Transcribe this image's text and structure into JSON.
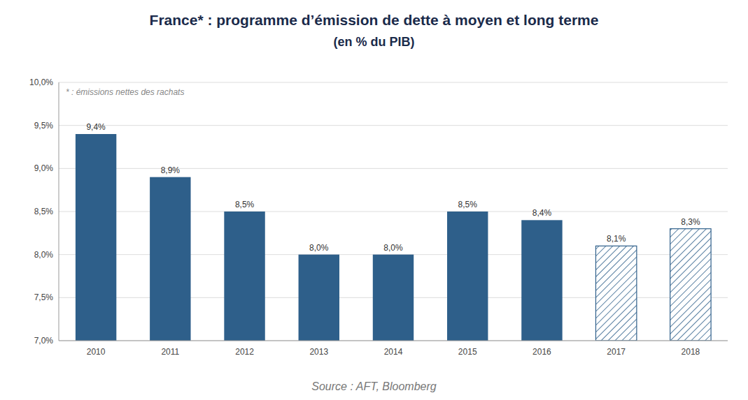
{
  "chart_data": {
    "type": "bar",
    "title": "France* : programme d’émission de dette à moyen et long terme",
    "subtitle": "(en % du PIB)",
    "annotations": [
      "* : émissions nettes des rachats",
      "Source : AFT, Bloomberg"
    ],
    "categories": [
      "2010",
      "2011",
      "2012",
      "2013",
      "2014",
      "2015",
      "2016",
      "2017",
      "2018"
    ],
    "values": [
      9.4,
      8.9,
      8.5,
      8.0,
      8.0,
      8.5,
      8.4,
      8.1,
      8.3
    ],
    "value_labels": [
      "9,4%",
      "8,9%",
      "8,5%",
      "8,0%",
      "8,0%",
      "8,5%",
      "8,4%",
      "8,1%",
      "8,3%"
    ],
    "data_labels": true,
    "color": "#2E5F8A",
    "colors": [
      "#2E5F8A",
      "#2E5F8A",
      "#2E5F8A",
      "#2E5F8A",
      "#2E5F8A",
      "#2E5F8A",
      "#2E5F8A",
      "#FFFFFF",
      "#FFFFFF"
    ],
    "ylim": [
      7.0,
      10.0
    ],
    "yticks": [
      {
        "value": 7.0,
        "label": "7,0%"
      },
      {
        "value": 7.5,
        "label": "7,5%"
      },
      {
        "value": 8.0,
        "label": "8,0%"
      },
      {
        "value": 8.5,
        "label": "8,5%"
      },
      {
        "value": 9.0,
        "label": "9,0%"
      },
      {
        "value": 9.5,
        "label": "9,5%"
      },
      {
        "value": 10.0,
        "label": "10,0%"
      }
    ],
    "grid": true
  }
}
